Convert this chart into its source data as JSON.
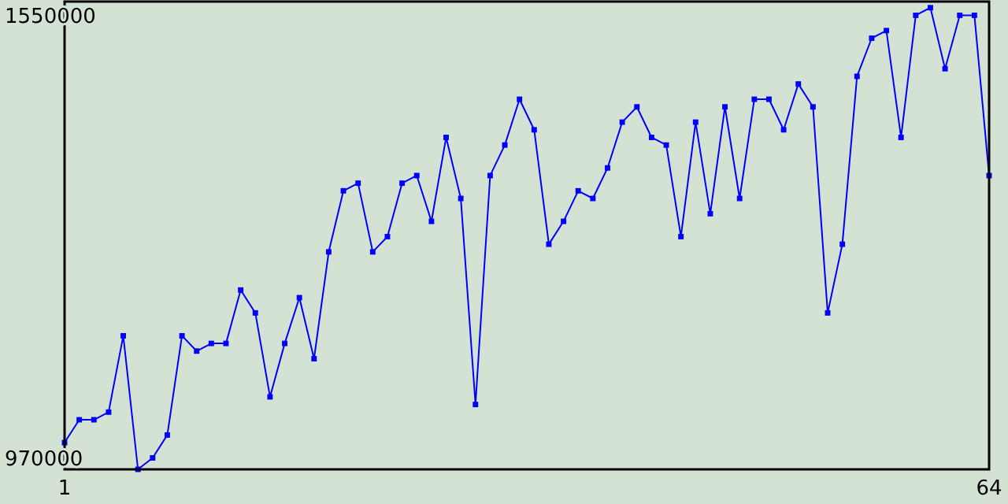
{
  "chart_data": {
    "type": "line",
    "x": [
      1,
      2,
      3,
      4,
      5,
      6,
      7,
      8,
      9,
      10,
      11,
      12,
      13,
      14,
      15,
      16,
      17,
      18,
      19,
      20,
      21,
      22,
      23,
      24,
      25,
      26,
      27,
      28,
      29,
      30,
      31,
      32,
      33,
      34,
      35,
      36,
      37,
      38,
      39,
      40,
      41,
      42,
      43,
      44,
      45,
      46,
      47,
      48,
      49,
      50,
      51,
      52,
      53,
      54,
      55,
      56,
      57,
      58,
      59,
      60,
      61,
      62,
      63,
      64
    ],
    "series": [
      {
        "color": "#0000ff",
        "values": [
          990000,
          1020000,
          1020000,
          1030000,
          1130000,
          955000,
          970000,
          1000000,
          1130000,
          1110000,
          1120000,
          1120000,
          1190000,
          1160000,
          1050000,
          1120000,
          1180000,
          1100000,
          1240000,
          1320000,
          1330000,
          1240000,
          1260000,
          1330000,
          1340000,
          1280000,
          1390000,
          1310000,
          1040000,
          1340000,
          1380000,
          1440000,
          1400000,
          1250000,
          1280000,
          1320000,
          1310000,
          1350000,
          1410000,
          1430000,
          1390000,
          1380000,
          1260000,
          1410000,
          1290000,
          1430000,
          1310000,
          1440000,
          1440000,
          1400000,
          1460000,
          1430000,
          1160000,
          1250000,
          1470000,
          1520000,
          1530000,
          1390000,
          1550000,
          1560000,
          1480000,
          1550000,
          1550000,
          1340000
        ]
      }
    ],
    "xlim": [
      1,
      64
    ],
    "xticks": [
      1,
      64
    ],
    "ylim": [
      955000,
      1568000
    ],
    "yticks": [
      970000,
      1550000
    ],
    "marker": "square",
    "grid": false
  }
}
